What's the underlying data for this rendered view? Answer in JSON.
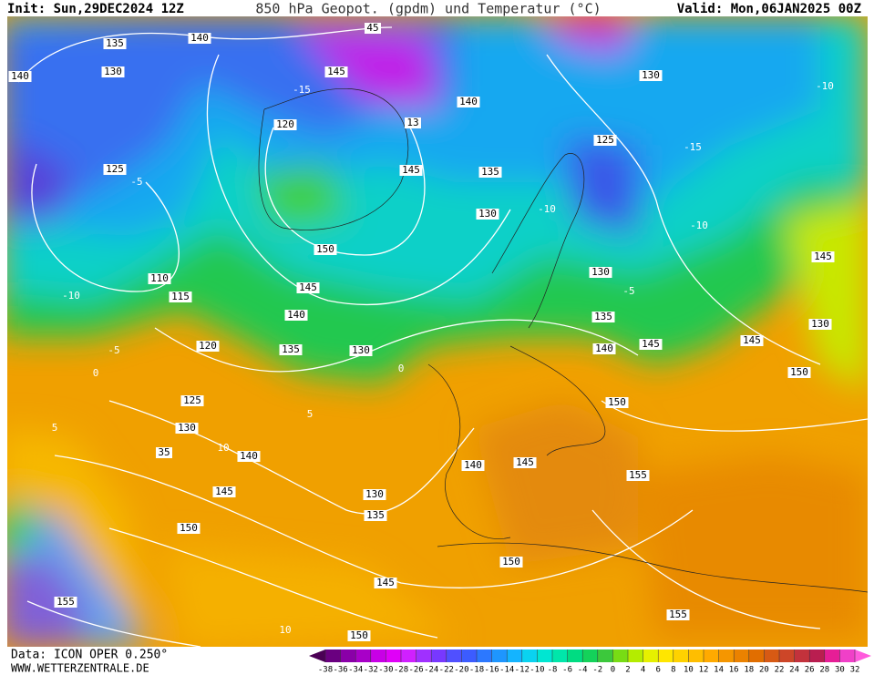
{
  "header": {
    "init": "Init: Sun,29DEC2024 12Z",
    "title": "850 hPa Geopot. (gpdm) und Temperatur (°C)",
    "valid": "Valid: Mon,06JAN2025 00Z"
  },
  "geopotential_labels": [
    135,
    140,
    45,
    140,
    130,
    145,
    140,
    130,
    120,
    13,
    125,
    125,
    145,
    135,
    130,
    150,
    110,
    115,
    145,
    140,
    130,
    135,
    145,
    130,
    120,
    135,
    130,
    140,
    145,
    145,
    150,
    125,
    130,
    150,
    35,
    140,
    140,
    145,
    155,
    145,
    130,
    135,
    150,
    150,
    145,
    155,
    155,
    150
  ],
  "temperature_labels": [
    -10,
    -5,
    0,
    5,
    10,
    5,
    10,
    -10,
    -15,
    -10,
    -5,
    0,
    -15,
    -10,
    -5
  ],
  "footer": {
    "data": "Data: ICON OPER 0.250°",
    "site": "WWW.WETTERZENTRALE.DE"
  },
  "colorbar": {
    "ticks": [
      -38,
      -36,
      -34,
      -32,
      -30,
      -28,
      -26,
      -24,
      -22,
      -20,
      -18,
      -16,
      -14,
      -12,
      -10,
      -8,
      -6,
      -4,
      -2,
      0,
      2,
      4,
      6,
      8,
      10,
      12,
      14,
      16,
      18,
      20,
      22,
      24,
      26,
      28,
      30,
      32
    ],
    "colors": [
      "#4b0055",
      "#6a0080",
      "#8a00a8",
      "#a800c8",
      "#c800e6",
      "#e000f8",
      "#d020ff",
      "#a030ff",
      "#7838ff",
      "#5050ff",
      "#3c5cff",
      "#2c78ff",
      "#1e96ff",
      "#14b4ff",
      "#0ad2f0",
      "#00e6d2",
      "#00e6aa",
      "#00dc82",
      "#14d25a",
      "#3cc83c",
      "#78dc14",
      "#b4ec00",
      "#e6f000",
      "#ffe600",
      "#ffd200",
      "#ffbe00",
      "#ffaa00",
      "#f59600",
      "#eb8200",
      "#e16e00",
      "#d75a14",
      "#cd4628",
      "#c3323c",
      "#b91e50",
      "#e61e96",
      "#f040c8",
      "#ff5adc"
    ]
  }
}
